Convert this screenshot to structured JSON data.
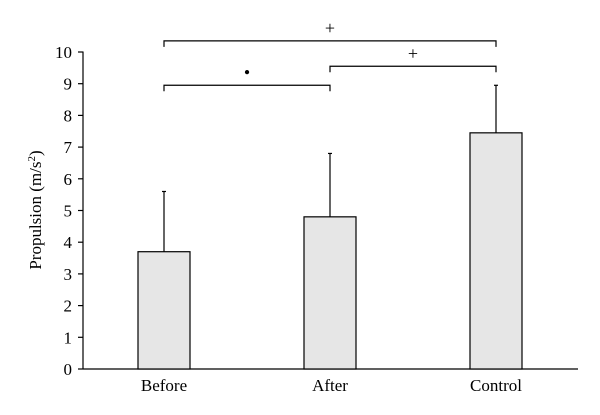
{
  "chart_data": {
    "type": "bar",
    "ylabel": "Propulsion (m/s",
    "ylabel_sup": "2",
    "ylabel_end": ")",
    "categories": [
      "Before",
      "After",
      "Control"
    ],
    "values": [
      3.7,
      4.8,
      7.45
    ],
    "error_upper": [
      5.6,
      6.8,
      8.95
    ],
    "ylim": [
      0,
      10
    ],
    "yticks": [
      "0",
      "1",
      "2",
      "3",
      "4",
      "5",
      "6",
      "7",
      "8",
      "9",
      "10"
    ],
    "grid": false,
    "bar_color": "#e6e6e6",
    "edge_color": "#000000",
    "significance": [
      {
        "from": 0,
        "to": 1,
        "level": 8.95,
        "mark": "•"
      },
      {
        "from": 1,
        "to": 2,
        "level": 9.55,
        "mark": "+"
      },
      {
        "from": 0,
        "to": 2,
        "level": 10.35,
        "mark": "+"
      }
    ]
  }
}
